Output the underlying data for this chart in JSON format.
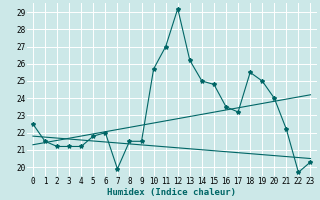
{
  "title": "",
  "xlabel": "Humidex (Indice chaleur)",
  "bg_color": "#cce8e8",
  "grid_color": "#ffffff",
  "line_color": "#006666",
  "xlim": [
    -0.5,
    23.5
  ],
  "ylim": [
    19.5,
    29.5
  ],
  "xticks": [
    0,
    1,
    2,
    3,
    4,
    5,
    6,
    7,
    8,
    9,
    10,
    11,
    12,
    13,
    14,
    15,
    16,
    17,
    18,
    19,
    20,
    21,
    22,
    23
  ],
  "yticks": [
    20,
    21,
    22,
    23,
    24,
    25,
    26,
    27,
    28,
    29
  ],
  "main_x": [
    0,
    1,
    2,
    3,
    4,
    5,
    6,
    7,
    8,
    9,
    10,
    11,
    12,
    13,
    14,
    15,
    16,
    17,
    18,
    19,
    20,
    21,
    22,
    23
  ],
  "main_y": [
    22.5,
    21.5,
    21.2,
    21.2,
    21.2,
    21.8,
    22.0,
    19.9,
    21.5,
    21.5,
    25.7,
    27.0,
    29.2,
    26.2,
    25.0,
    24.8,
    23.5,
    23.2,
    25.5,
    25.0,
    24.0,
    22.2,
    19.7,
    20.3
  ],
  "trend1_x": [
    0,
    23
  ],
  "trend1_y": [
    21.3,
    24.2
  ],
  "trend2_x": [
    0,
    23
  ],
  "trend2_y": [
    21.8,
    20.5
  ],
  "xlabel_fontsize": 6.5,
  "tick_fontsize": 5.5
}
